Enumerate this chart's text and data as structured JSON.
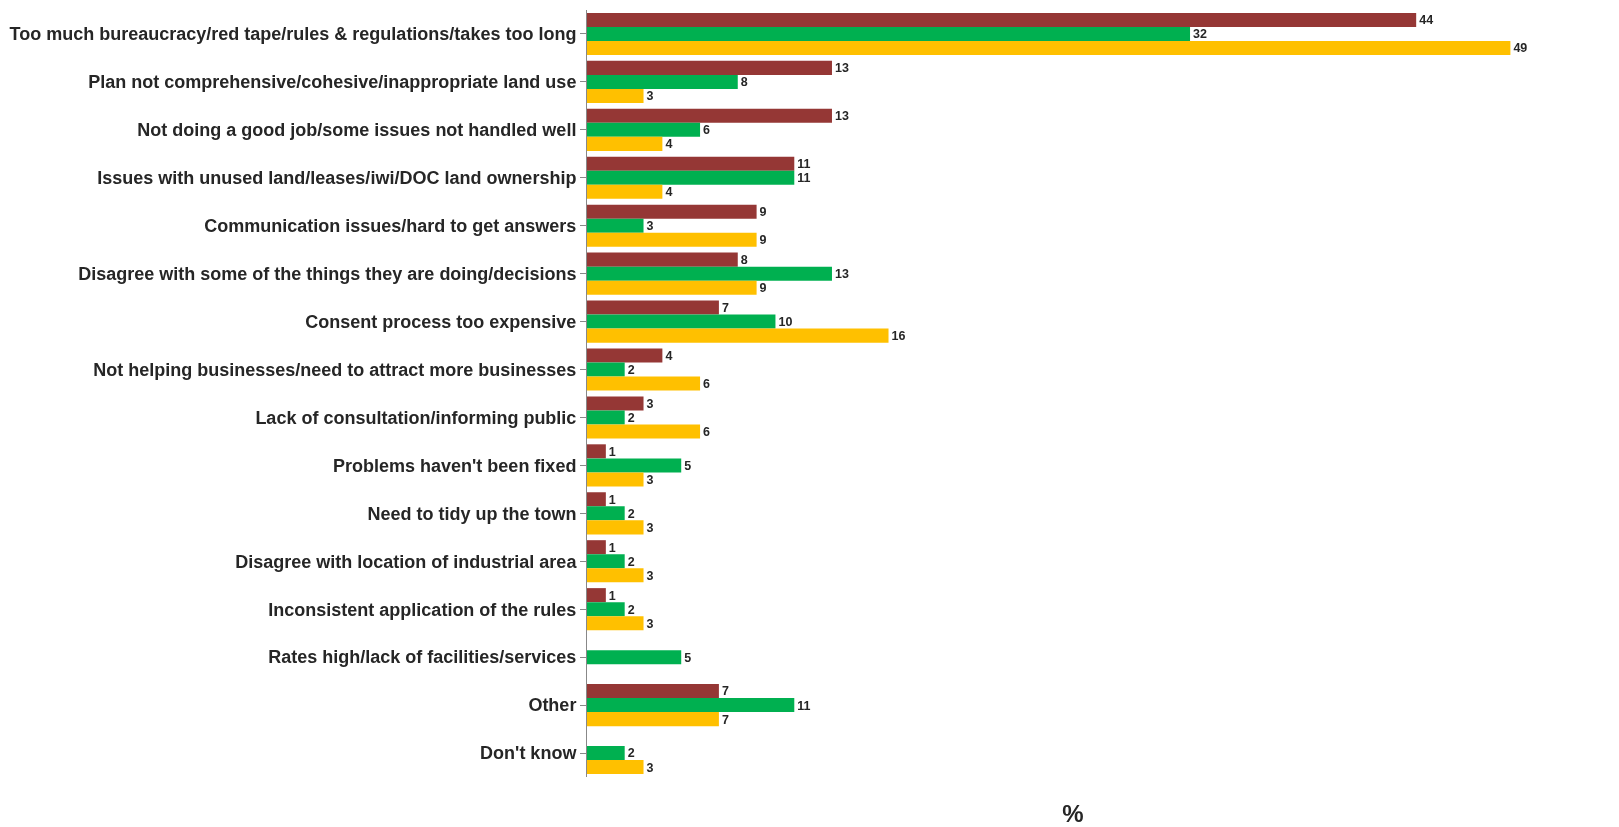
{
  "chart_data": {
    "type": "bar",
    "orientation": "horizontal",
    "xlabel": "%",
    "categories": [
      "Too much bureaucracy/red tape/rules & regulations/takes too long",
      "Plan not comprehensive/cohesive/inappropriate land use",
      "Not doing a good job/some issues not handled well",
      "Issues with unused land/leases/iwi/DOC land ownership",
      "Communication issues/hard to get answers",
      "Disagree with some of the things they are doing/decisions",
      "Consent process too expensive",
      "Not helping businesses/need to attract more businesses",
      "Lack of consultation/informing public",
      "Problems haven't been fixed",
      "Need to tidy up the town",
      "Disagree with location of industrial area",
      "Inconsistent application of the rules",
      "Rates high/lack of facilities/services",
      "Other",
      "Don't know"
    ],
    "series": [
      {
        "color": "#953735",
        "values": [
          44,
          13,
          13,
          11,
          9,
          8,
          7,
          4,
          3,
          1,
          1,
          1,
          1,
          null,
          7,
          null
        ]
      },
      {
        "color": "#00b050",
        "values": [
          32,
          8,
          6,
          11,
          3,
          13,
          10,
          2,
          2,
          5,
          2,
          2,
          2,
          5,
          11,
          2
        ]
      },
      {
        "color": "#ffc000",
        "values": [
          49,
          3,
          4,
          4,
          9,
          9,
          16,
          6,
          6,
          3,
          3,
          3,
          3,
          null,
          7,
          3
        ]
      }
    ],
    "data_labels": true,
    "tick_labels": "y"
  }
}
